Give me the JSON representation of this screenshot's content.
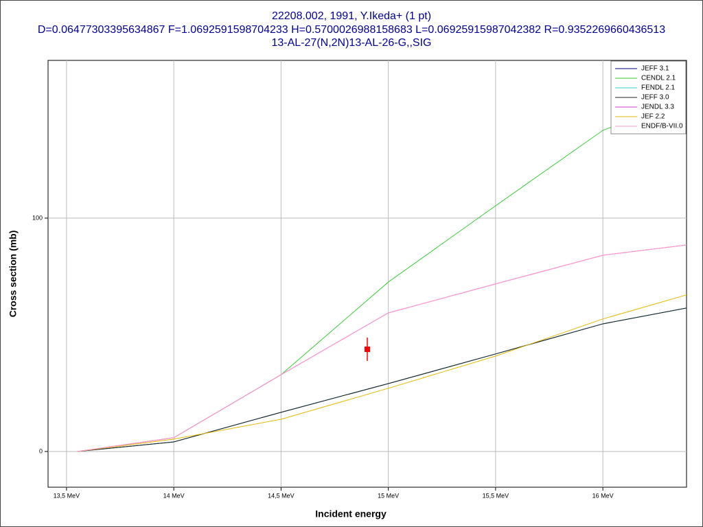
{
  "chart_data": {
    "type": "line",
    "title": "22208.002, 1991, Y.Ikeda+ (1 pt)",
    "subtitle": "D=0.06477303395634867 F=1.0692591598704233 H=0.5700026988158683 L=0.06925915987042382 R=0.9352269660436513",
    "reaction": "13-AL-27(N,2N)13-AL-26-G,,SIG",
    "x_label": "Incident energy",
    "y_label": "Cross section (mb)",
    "xlim": [
      13.414,
      16.39
    ],
    "ylim": [
      -15.3,
      167.6
    ],
    "xticks": [
      {
        "value": 13.5,
        "label": "13,5 MeV"
      },
      {
        "value": 14,
        "label": "14 MeV"
      },
      {
        "value": 14.5,
        "label": "14,5 MeV"
      },
      {
        "value": 15,
        "label": "15 MeV"
      },
      {
        "value": 15.5,
        "label": "15,5 MeV"
      },
      {
        "value": 16,
        "label": "16 MeV"
      }
    ],
    "yticks": [
      0,
      100
    ],
    "grid": true,
    "legend": "top-right",
    "series": [
      {
        "name": "JEFF 3.1",
        "color": "#000080",
        "x": [
          13.55,
          14,
          14.5,
          15,
          15.5,
          16,
          16.39
        ],
        "values": [
          0,
          4.1,
          16.8,
          29.1,
          41.8,
          54.7,
          61.5
        ]
      },
      {
        "name": "CENDL 2.1",
        "color": "#33cc33",
        "x": [
          13.55,
          14,
          14.5,
          15,
          15.5,
          16,
          16.1
        ],
        "values": [
          0,
          5.9,
          32.9,
          72.6,
          105.3,
          137.6,
          141.2
        ]
      },
      {
        "name": "FENDL 2.1",
        "color": "#33cccc",
        "x": [
          13.55,
          14,
          14.5,
          15,
          15.5,
          16,
          16.39
        ],
        "values": [
          0,
          4.1,
          16.8,
          29.1,
          41.8,
          54.7,
          61.5
        ]
      },
      {
        "name": "JEFF 3.0",
        "color": "#202020",
        "x": [
          13.55,
          14,
          14.5,
          15,
          15.5,
          16,
          16.39
        ],
        "values": [
          0,
          4.1,
          16.8,
          29.1,
          41.8,
          54.7,
          61.5
        ]
      },
      {
        "name": "JENDL 3.3",
        "color": "#cc33cc",
        "x": [
          13.55,
          14,
          14.5,
          15,
          15.5,
          16,
          16.39
        ],
        "values": [
          0,
          5.9,
          32.9,
          59.4,
          71.8,
          84.1,
          88.5
        ]
      },
      {
        "name": "JEF 2.2",
        "color": "#e6b800",
        "x": [
          13.55,
          14,
          14.5,
          15,
          15.5,
          16,
          16.39
        ],
        "values": [
          0,
          5.3,
          13.8,
          27.1,
          40.9,
          56.8,
          67.1
        ]
      },
      {
        "name": "ENDF/B-VII.0",
        "color": "#ff99cc",
        "x": [
          13.55,
          14,
          14.5,
          15,
          15.5,
          16,
          16.39
        ],
        "values": [
          0,
          5.9,
          32.9,
          59.4,
          71.8,
          84.1,
          88.5
        ]
      }
    ],
    "points": {
      "color": "#ff0000",
      "x": [
        14.902
      ],
      "values": [
        43.8
      ],
      "errors": [
        5.0
      ]
    }
  }
}
